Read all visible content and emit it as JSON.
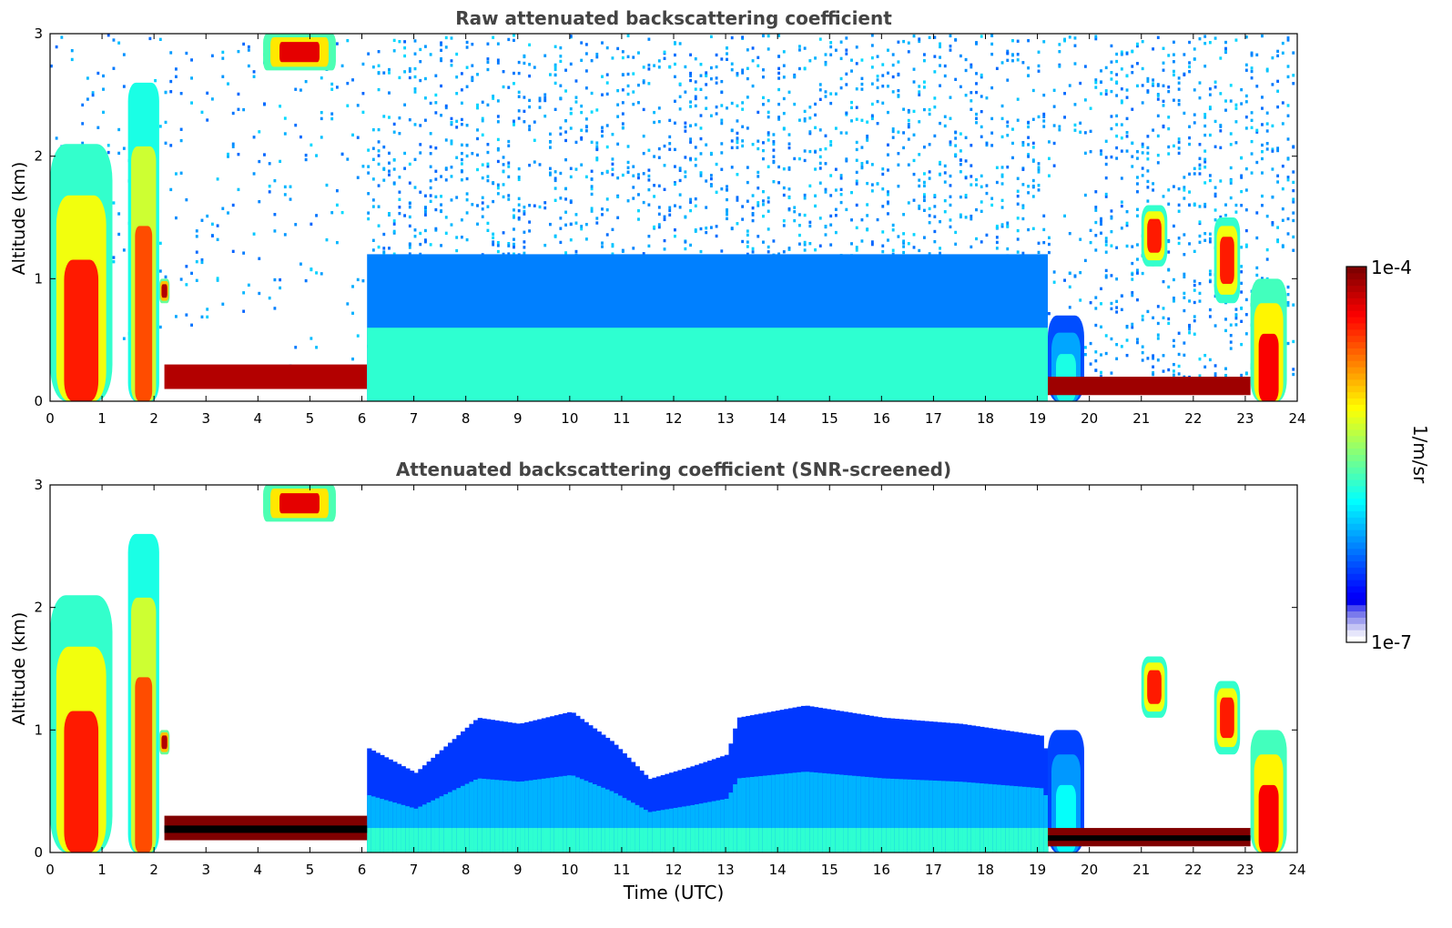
{
  "figure": {
    "colorbar": {
      "label": "1/m/sr",
      "max_label": "1e-4",
      "min_label": "1e-7",
      "min": 1e-07,
      "max": 0.0001,
      "scale": "log",
      "colormap": "jet",
      "low_end_colors": [
        "#ffffff",
        "#e6e6fb",
        "#c4c4f4",
        "#9e9eef",
        "#7a7aec",
        "#4a4aef",
        "#0000f0"
      ]
    }
  },
  "chart_data": [
    {
      "type": "heatmap",
      "title": "Raw attenuated backscattering coefficient",
      "xlabel": "",
      "ylabel": "Altitude (km)",
      "xlim": [
        0,
        24
      ],
      "ylim": [
        0,
        3
      ],
      "xticks": [
        "0",
        "1",
        "2",
        "3",
        "4",
        "5",
        "6",
        "7",
        "8",
        "9",
        "10",
        "11",
        "12",
        "13",
        "14",
        "15",
        "16",
        "17",
        "18",
        "19",
        "20",
        "21",
        "22",
        "23",
        "24"
      ],
      "yticks": [
        "0",
        "1",
        "2",
        "3"
      ],
      "noise_above_boundary_layer": true,
      "features": [
        {
          "name": "low cloud",
          "x": [
            0,
            1.2
          ],
          "y": [
            0,
            2.1
          ],
          "level": 0.85
        },
        {
          "name": "cloud",
          "x": [
            1.5,
            2.1
          ],
          "y": [
            0,
            2.6
          ],
          "level": 0.8
        },
        {
          "name": "cloud",
          "x": [
            2.1,
            2.3
          ],
          "y": [
            0.8,
            1.0
          ],
          "level": 0.95
        },
        {
          "name": "aerosol layer",
          "x": [
            2.2,
            6.1
          ],
          "y": [
            0.1,
            0.3
          ],
          "level": 0.95
        },
        {
          "name": "high cloud",
          "x": [
            4.1,
            5.5
          ],
          "y": [
            2.7,
            3.0
          ],
          "level": 0.9
        },
        {
          "name": "boundary layer",
          "x": [
            6.1,
            19.2
          ],
          "y": [
            0,
            1.2
          ],
          "level": 0.42
        },
        {
          "name": "cloud",
          "x": [
            19.2,
            19.9
          ],
          "y": [
            0,
            0.7
          ],
          "level": 0.4
        },
        {
          "name": "aerosol layer",
          "x": [
            19.2,
            23.1
          ],
          "y": [
            0.05,
            0.2
          ],
          "level": 0.97
        },
        {
          "name": "cloud",
          "x": [
            21,
            21.5
          ],
          "y": [
            1.1,
            1.6
          ],
          "level": 0.85
        },
        {
          "name": "cloud",
          "x": [
            22.4,
            22.9
          ],
          "y": [
            0.8,
            1.5
          ],
          "level": 0.85
        },
        {
          "name": "cloud",
          "x": [
            23.1,
            23.8
          ],
          "y": [
            0,
            1.0
          ],
          "level": 0.88
        }
      ]
    },
    {
      "type": "heatmap",
      "title": "Attenuated backscattering coefficient (SNR-screened)",
      "xlabel": "Time (UTC)",
      "ylabel": "Altitude (km)",
      "xlim": [
        0,
        24
      ],
      "ylim": [
        0,
        3
      ],
      "xticks": [
        "0",
        "1",
        "2",
        "3",
        "4",
        "5",
        "6",
        "7",
        "8",
        "9",
        "10",
        "11",
        "12",
        "13",
        "14",
        "15",
        "16",
        "17",
        "18",
        "19",
        "20",
        "21",
        "22",
        "23",
        "24"
      ],
      "yticks": [
        "0",
        "1",
        "2",
        "3"
      ],
      "noise_above_boundary_layer": false,
      "boundary_layer_top_km": [
        [
          6.1,
          0.85
        ],
        [
          7.0,
          0.65
        ],
        [
          7.8,
          0.95
        ],
        [
          8.2,
          1.1
        ],
        [
          9.0,
          1.05
        ],
        [
          10.0,
          1.15
        ],
        [
          10.8,
          0.9
        ],
        [
          11.5,
          0.6
        ],
        [
          12.3,
          0.7
        ],
        [
          13.0,
          0.8
        ],
        [
          13.2,
          1.1
        ],
        [
          14.5,
          1.2
        ],
        [
          16.0,
          1.1
        ],
        [
          17.5,
          1.05
        ],
        [
          19.1,
          0.95
        ],
        [
          19.2,
          0.4
        ]
      ],
      "features": [
        {
          "name": "low cloud",
          "x": [
            0,
            1.2
          ],
          "y": [
            0,
            2.1
          ],
          "level": 0.85
        },
        {
          "name": "cloud",
          "x": [
            1.5,
            2.1
          ],
          "y": [
            0,
            2.6
          ],
          "level": 0.8
        },
        {
          "name": "cloud",
          "x": [
            2.1,
            2.3
          ],
          "y": [
            0.8,
            1.0
          ],
          "level": 0.95
        },
        {
          "name": "aerosol layer",
          "x": [
            2.2,
            6.1
          ],
          "y": [
            0.1,
            0.3
          ],
          "level": 1.0
        },
        {
          "name": "high cloud",
          "x": [
            4.1,
            5.5
          ],
          "y": [
            2.7,
            3.0
          ],
          "level": 0.9
        },
        {
          "name": "cloud",
          "x": [
            19.2,
            19.9
          ],
          "y": [
            0,
            1.0
          ],
          "level": 0.38
        },
        {
          "name": "aerosol layer",
          "x": [
            19.2,
            23.1
          ],
          "y": [
            0.05,
            0.2
          ],
          "level": 1.0
        },
        {
          "name": "cloud",
          "x": [
            21,
            21.5
          ],
          "y": [
            1.1,
            1.6
          ],
          "level": 0.85
        },
        {
          "name": "cloud",
          "x": [
            22.4,
            22.9
          ],
          "y": [
            0.8,
            1.4
          ],
          "level": 0.85
        },
        {
          "name": "cloud",
          "x": [
            23.1,
            23.8
          ],
          "y": [
            0,
            1.0
          ],
          "level": 0.88
        }
      ]
    }
  ]
}
